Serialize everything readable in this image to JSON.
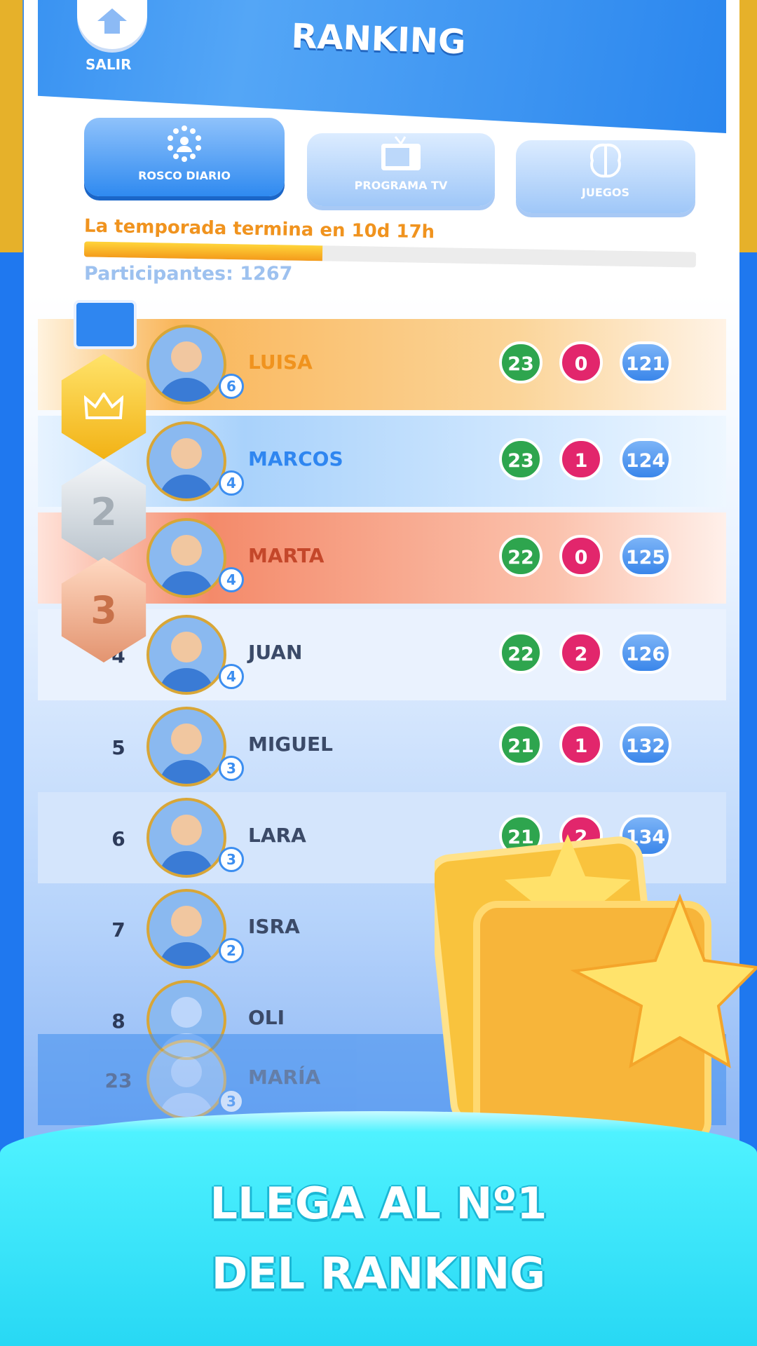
{
  "header": {
    "title": "RANKING",
    "exit_label": "SALIR"
  },
  "tabs": [
    {
      "label": "ROSCO DIARIO",
      "icon": "rosco-icon",
      "active": true
    },
    {
      "label": "PROGRAMA TV",
      "icon": "tv-icon",
      "active": false
    },
    {
      "label": "JUEGOS",
      "icon": "brain-icon",
      "active": false
    }
  ],
  "season": {
    "text": "La temporada termina en 10d 17h",
    "progress_percent": 39
  },
  "participants": "Participantes: 1267",
  "rows": [
    {
      "rank": "1",
      "name": "LUISA",
      "level": "6",
      "correct": "23",
      "wrong": "0",
      "time": "121",
      "color": "#f0931e"
    },
    {
      "rank": "2",
      "name": "MARCOS",
      "level": "4",
      "correct": "23",
      "wrong": "1",
      "time": "124",
      "color": "#2f86f0"
    },
    {
      "rank": "3",
      "name": "MARTA",
      "level": "4",
      "correct": "22",
      "wrong": "0",
      "time": "125",
      "color": "#c4472a"
    },
    {
      "rank": "4",
      "name": "JUAN",
      "level": "4",
      "correct": "22",
      "wrong": "2",
      "time": "126"
    },
    {
      "rank": "5",
      "name": "MIGUEL",
      "level": "3",
      "correct": "21",
      "wrong": "1",
      "time": "132"
    },
    {
      "rank": "6",
      "name": "LARA",
      "level": "3",
      "correct": "21",
      "wrong": "2",
      "time": "134"
    },
    {
      "rank": "7",
      "name": "ISRA",
      "level": "2"
    },
    {
      "rank": "8",
      "name": "OLI"
    },
    {
      "rank": "23",
      "name": "MARÍA",
      "level": "3"
    }
  ],
  "medals": [
    "",
    "2",
    "3"
  ],
  "promo": {
    "line1": "LLEGA AL Nº1",
    "line2": "DEL RANKING"
  }
}
